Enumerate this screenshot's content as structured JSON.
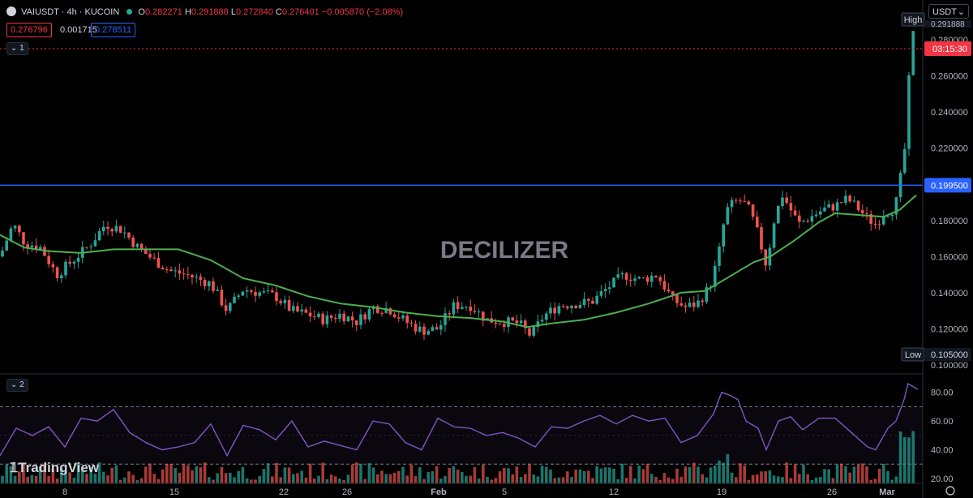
{
  "header": {
    "symbol_line": "VAIUSDT · 4h · KUCOIN",
    "open_label": "O",
    "open": "0.282271",
    "high_label": "H",
    "high": "0.291888",
    "low_label": "L",
    "low": "0.272840",
    "close_label": "C",
    "close": "0.276401",
    "change": "−0.005870 (−2.08%)",
    "bid": "0.276796",
    "spread": "0.001715",
    "ask": "0.278511"
  },
  "currency": "USDT",
  "pane1_label": "1",
  "pane2_label": "2",
  "watermark": "DECILIZER",
  "branding": "TradingView",
  "colors": {
    "up": "#26a69a",
    "down": "#ef5350",
    "ma": "#4caf50",
    "level": "#2962ff",
    "rsi": "#7e57c2",
    "price_tag": "#f23645"
  },
  "chart_data": {
    "type": "candlestick",
    "y_ticks": [
      "0.100000",
      "0.120000",
      "0.140000",
      "0.160000",
      "0.180000",
      "0.200000",
      "0.220000",
      "0.240000",
      "0.260000",
      "0.280000"
    ],
    "ylim": [
      0.1,
      0.28
    ],
    "x_ticks": [
      "8",
      "15",
      "22",
      "26",
      "Feb",
      "5",
      "12",
      "19",
      "26",
      "Mar"
    ],
    "price_key_points": [
      [
        0,
        0.16
      ],
      [
        16,
        0.178
      ],
      [
        30,
        0.168
      ],
      [
        50,
        0.165
      ],
      [
        70,
        0.15
      ],
      [
        90,
        0.158
      ],
      [
        110,
        0.166
      ],
      [
        130,
        0.178
      ],
      [
        150,
        0.175
      ],
      [
        170,
        0.165
      ],
      [
        190,
        0.158
      ],
      [
        210,
        0.152
      ],
      [
        230,
        0.15
      ],
      [
        260,
        0.145
      ],
      [
        280,
        0.13
      ],
      [
        300,
        0.142
      ],
      [
        320,
        0.14
      ],
      [
        340,
        0.138
      ],
      [
        360,
        0.13
      ],
      [
        380,
        0.128
      ],
      [
        400,
        0.125
      ],
      [
        420,
        0.128
      ],
      [
        440,
        0.124
      ],
      [
        460,
        0.132
      ],
      [
        480,
        0.131
      ],
      [
        500,
        0.124
      ],
      [
        520,
        0.119
      ],
      [
        540,
        0.12
      ],
      [
        560,
        0.133
      ],
      [
        580,
        0.133
      ],
      [
        600,
        0.125
      ],
      [
        620,
        0.124
      ],
      [
        640,
        0.123
      ],
      [
        655,
        0.116
      ],
      [
        670,
        0.127
      ],
      [
        690,
        0.133
      ],
      [
        710,
        0.134
      ],
      [
        730,
        0.135
      ],
      [
        750,
        0.143
      ],
      [
        770,
        0.15
      ],
      [
        790,
        0.147
      ],
      [
        810,
        0.15
      ],
      [
        830,
        0.136
      ],
      [
        845,
        0.132
      ],
      [
        860,
        0.134
      ],
      [
        875,
        0.143
      ],
      [
        885,
        0.158
      ],
      [
        895,
        0.185
      ],
      [
        905,
        0.19
      ],
      [
        915,
        0.191
      ],
      [
        925,
        0.185
      ],
      [
        935,
        0.172
      ],
      [
        945,
        0.155
      ],
      [
        955,
        0.181
      ],
      [
        965,
        0.194
      ],
      [
        975,
        0.186
      ],
      [
        985,
        0.178
      ],
      [
        1000,
        0.182
      ],
      [
        1015,
        0.186
      ],
      [
        1030,
        0.188
      ],
      [
        1045,
        0.192
      ],
      [
        1060,
        0.186
      ],
      [
        1070,
        0.181
      ],
      [
        1080,
        0.178
      ],
      [
        1090,
        0.184
      ],
      [
        1100,
        0.186
      ],
      [
        1105,
        0.19
      ],
      [
        1110,
        0.197
      ],
      [
        1115,
        0.215
      ],
      [
        1119,
        0.235
      ],
      [
        1122,
        0.262
      ],
      [
        1125,
        0.282
      ],
      [
        1128,
        0.276
      ]
    ],
    "ma_points": [
      [
        0,
        0.172
      ],
      [
        30,
        0.165
      ],
      [
        60,
        0.163
      ],
      [
        100,
        0.162
      ],
      [
        140,
        0.164
      ],
      [
        180,
        0.164
      ],
      [
        220,
        0.164
      ],
      [
        260,
        0.158
      ],
      [
        300,
        0.148
      ],
      [
        340,
        0.144
      ],
      [
        380,
        0.138
      ],
      [
        420,
        0.134
      ],
      [
        460,
        0.132
      ],
      [
        500,
        0.129
      ],
      [
        540,
        0.127
      ],
      [
        580,
        0.126
      ],
      [
        620,
        0.124
      ],
      [
        650,
        0.121
      ],
      [
        680,
        0.123
      ],
      [
        720,
        0.125
      ],
      [
        760,
        0.129
      ],
      [
        800,
        0.134
      ],
      [
        840,
        0.14
      ],
      [
        870,
        0.141
      ],
      [
        900,
        0.149
      ],
      [
        930,
        0.157
      ],
      [
        950,
        0.16
      ],
      [
        980,
        0.169
      ],
      [
        1010,
        0.179
      ],
      [
        1030,
        0.184
      ],
      [
        1060,
        0.183
      ],
      [
        1090,
        0.182
      ],
      [
        1110,
        0.186
      ],
      [
        1130,
        0.194
      ]
    ],
    "resistance_level": 0.1995,
    "resistance_label": "0.199500",
    "last_price_label": "0.276796",
    "countdown": "03:15:30",
    "high_marker": "High",
    "high_value": "0.291888",
    "low_marker": "Low",
    "low_value": "0.105000",
    "rsi": {
      "ylim": [
        20,
        90
      ],
      "y_ticks": [
        "20.00",
        "40.00",
        "60.00",
        "80.00"
      ],
      "upper_band": 70,
      "lower_band": 30,
      "points": [
        [
          0,
          36
        ],
        [
          20,
          55
        ],
        [
          40,
          50
        ],
        [
          60,
          56
        ],
        [
          80,
          42
        ],
        [
          100,
          62
        ],
        [
          120,
          60
        ],
        [
          140,
          68
        ],
        [
          160,
          52
        ],
        [
          180,
          45
        ],
        [
          200,
          40
        ],
        [
          220,
          42
        ],
        [
          240,
          45
        ],
        [
          260,
          58
        ],
        [
          280,
          36
        ],
        [
          300,
          57
        ],
        [
          320,
          54
        ],
        [
          340,
          47
        ],
        [
          360,
          60
        ],
        [
          380,
          42
        ],
        [
          400,
          46
        ],
        [
          420,
          43
        ],
        [
          440,
          40
        ],
        [
          460,
          60
        ],
        [
          480,
          58
        ],
        [
          500,
          45
        ],
        [
          520,
          40
        ],
        [
          540,
          62
        ],
        [
          560,
          56
        ],
        [
          580,
          55
        ],
        [
          600,
          50
        ],
        [
          620,
          52
        ],
        [
          640,
          48
        ],
        [
          660,
          42
        ],
        [
          680,
          56
        ],
        [
          700,
          55
        ],
        [
          720,
          60
        ],
        [
          740,
          64
        ],
        [
          760,
          58
        ],
        [
          780,
          64
        ],
        [
          800,
          60
        ],
        [
          820,
          62
        ],
        [
          840,
          45
        ],
        [
          860,
          50
        ],
        [
          880,
          65
        ],
        [
          890,
          80
        ],
        [
          900,
          78
        ],
        [
          910,
          75
        ],
        [
          920,
          60
        ],
        [
          935,
          55
        ],
        [
          945,
          40
        ],
        [
          960,
          60
        ],
        [
          975,
          63
        ],
        [
          990,
          54
        ],
        [
          1010,
          62
        ],
        [
          1030,
          62
        ],
        [
          1050,
          52
        ],
        [
          1070,
          42
        ],
        [
          1080,
          40
        ],
        [
          1095,
          55
        ],
        [
          1105,
          60
        ],
        [
          1115,
          75
        ],
        [
          1120,
          86
        ],
        [
          1126,
          84
        ],
        [
          1132,
          82
        ]
      ]
    }
  }
}
